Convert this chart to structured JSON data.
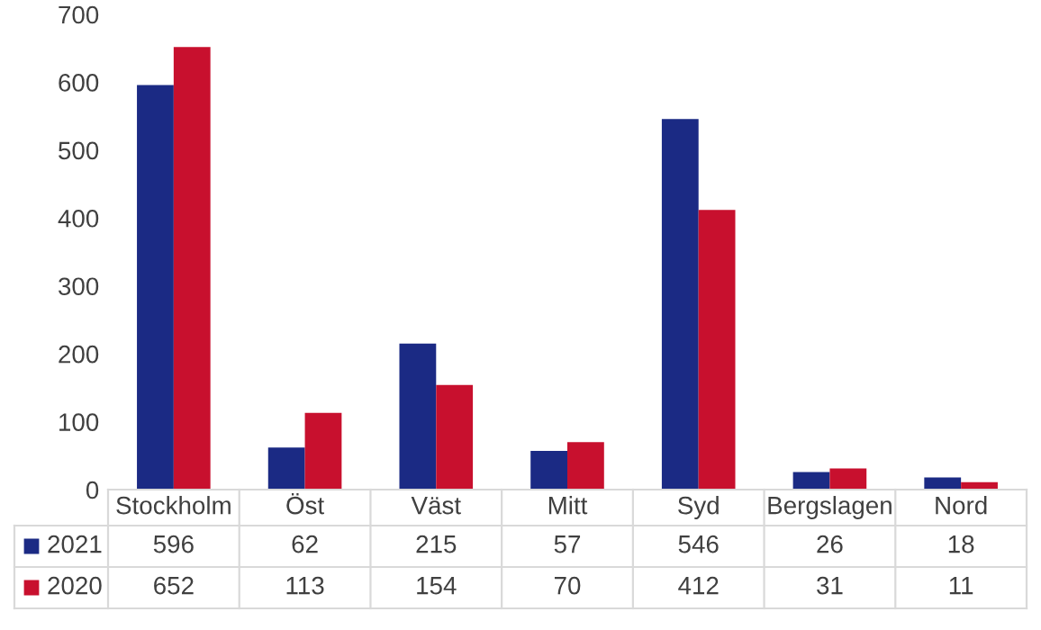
{
  "chart_data": {
    "type": "bar",
    "categories": [
      "Stockholm",
      "Öst",
      "Väst",
      "Mitt",
      "Syd",
      "Bergslagen",
      "Nord"
    ],
    "series": [
      {
        "name": "2021",
        "color": "#1b2a84",
        "values": [
          596,
          62,
          215,
          57,
          546,
          26,
          18
        ]
      },
      {
        "name": "2020",
        "color": "#c8102e",
        "values": [
          652,
          113,
          154,
          70,
          412,
          31,
          11
        ]
      }
    ],
    "ylim": [
      0,
      700
    ],
    "yticks": [
      0,
      100,
      200,
      300,
      400,
      500,
      600,
      700
    ],
    "grid": false,
    "data_labels": true,
    "legend": "bottom"
  }
}
